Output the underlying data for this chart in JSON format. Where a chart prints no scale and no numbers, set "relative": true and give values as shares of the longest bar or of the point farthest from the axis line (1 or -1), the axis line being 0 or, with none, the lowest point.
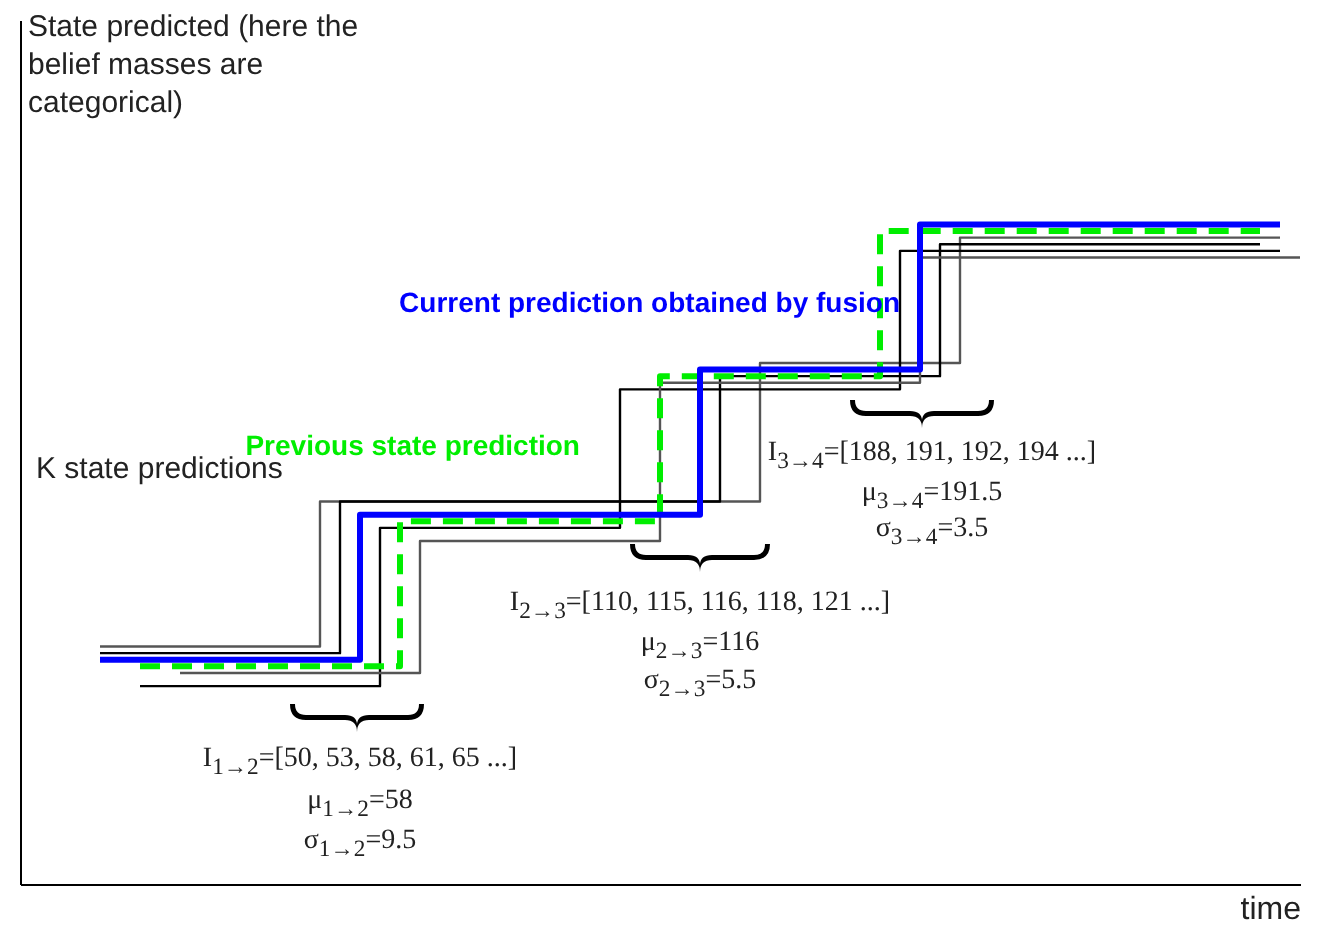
{
  "chart_data": {
    "type": "step",
    "relative": true,
    "xlabel": "time",
    "ylabel": "State predicted (here the belief masses are categorical)",
    "categories": [
      null,
      null,
      null,
      null,
      null,
      null,
      null,
      null,
      null,
      null,
      null,
      null,
      null,
      null,
      null,
      null,
      null,
      null,
      null,
      null,
      null,
      null,
      null,
      null,
      null,
      null,
      null,
      null,
      null,
      null,
      null,
      null,
      null,
      null,
      null,
      null,
      null,
      null,
      null,
      null,
      null,
      null,
      null,
      null,
      null,
      null,
      null,
      null,
      null,
      null,
      null,
      null,
      null,
      null,
      null,
      null,
      null,
      null,
      null,
      null,
      null,
      null
    ],
    "annotations": [
      "K state predictions",
      "I$_{1→2}$=[50, 53, 58, 61, 65 ...]",
      "μ$_{1→2}$=58",
      "σ$_{1→2}$=9.5",
      "I$_{2→3}$=[110, 115, 116, 118, 121 ...]",
      "μ$_{2→3}$=116",
      "σ$_{2→3}$=5.5",
      "I$_{3→4}$=[188, 191, 192, 194 ...]",
      "μ$_{3→4}$=191.5",
      "σ$_{3→4}$=3.5"
    ],
    "series": [
      {
        "color": "#555555",
        "values": [
          null,
          0.36,
          0.36,
          0.36,
          0.36,
          0.36,
          0.36,
          0.36,
          0.36,
          0.36,
          0.36,
          0.36,
          0.58,
          0.58,
          0.58,
          0.58,
          0.58,
          0.58,
          0.58,
          0.58,
          0.58,
          0.58,
          0.58,
          0.58,
          0.58,
          0.58,
          0.58,
          0.58,
          0.58,
          0.58,
          0.58,
          0.58,
          0.58,
          0.58,
          0.79,
          0.79,
          0.79,
          0.79,
          0.79,
          0.79,
          0.79,
          0.79,
          0.79,
          0.79,
          0.98,
          0.98,
          0.98,
          0.98,
          0.98,
          0.98,
          0.98,
          0.98,
          0.98,
          0.98,
          0.98,
          0.98,
          0.98,
          0.98,
          0.98,
          0.98,
          0.98,
          null
        ]
      },
      {
        "color": "#000000",
        "values": [
          null,
          0.35,
          0.35,
          0.35,
          0.35,
          0.35,
          0.35,
          0.35,
          0.35,
          0.35,
          0.35,
          0.35,
          0.35,
          0.58,
          0.58,
          0.58,
          0.58,
          0.58,
          0.58,
          0.58,
          0.58,
          0.58,
          0.58,
          0.58,
          0.58,
          0.58,
          0.58,
          0.58,
          0.58,
          0.58,
          0.58,
          0.58,
          0.77,
          0.77,
          0.77,
          0.77,
          0.77,
          0.77,
          0.77,
          0.77,
          0.77,
          0.77,
          0.77,
          0.97,
          0.97,
          0.97,
          0.97,
          0.97,
          0.97,
          0.97,
          0.97,
          0.97,
          0.97,
          0.97,
          0.97,
          0.97,
          0.97,
          0.97,
          0.97,
          0.97,
          null,
          null
        ]
      },
      {
        "color": "#000000",
        "values": [
          null,
          null,
          null,
          0.3,
          0.3,
          0.3,
          0.3,
          0.3,
          0.3,
          0.3,
          0.3,
          0.3,
          0.3,
          0.3,
          0.3,
          0.54,
          0.54,
          0.54,
          0.54,
          0.54,
          0.54,
          0.54,
          0.54,
          0.54,
          0.54,
          0.54,
          0.54,
          0.75,
          0.75,
          0.75,
          0.75,
          0.75,
          0.75,
          0.75,
          0.75,
          0.75,
          0.75,
          0.75,
          0.75,
          0.75,
          0.75,
          0.96,
          0.96,
          0.96,
          0.96,
          0.96,
          0.96,
          0.96,
          0.96,
          0.96,
          0.96,
          0.96,
          0.96,
          0.96,
          0.96,
          0.96,
          0.96,
          0.96,
          0.96,
          0.96,
          0.96,
          null
        ]
      },
      {
        "color": "#555555",
        "values": [
          null,
          null,
          null,
          null,
          null,
          0.32,
          0.32,
          0.32,
          0.32,
          0.32,
          0.32,
          0.32,
          0.32,
          0.32,
          0.32,
          0.32,
          0.32,
          0.52,
          0.52,
          0.52,
          0.52,
          0.52,
          0.52,
          0.52,
          0.52,
          0.52,
          0.52,
          0.52,
          0.52,
          0.76,
          0.76,
          0.76,
          0.76,
          0.76,
          0.76,
          0.76,
          0.76,
          0.76,
          0.76,
          0.76,
          0.76,
          0.76,
          0.95,
          0.95,
          0.95,
          0.95,
          0.95,
          0.95,
          0.95,
          0.95,
          0.95,
          0.95,
          0.95,
          0.95,
          0.95,
          0.95,
          0.95,
          0.95,
          0.95,
          0.95,
          0.95,
          0.95
        ]
      },
      {
        "name": "Previous state prediction",
        "color": "#00ee00",
        "line_style": "dashed",
        "values": [
          null,
          null,
          null,
          0.33,
          0.33,
          0.33,
          0.33,
          0.33,
          0.33,
          0.33,
          0.33,
          0.33,
          0.33,
          0.33,
          0.33,
          0.33,
          0.55,
          0.55,
          0.55,
          0.55,
          0.55,
          0.55,
          0.55,
          0.55,
          0.55,
          0.55,
          0.55,
          0.55,
          0.55,
          0.77,
          0.77,
          0.77,
          0.77,
          0.77,
          0.77,
          0.77,
          0.77,
          0.77,
          0.77,
          0.77,
          0.99,
          0.99,
          0.99,
          0.99,
          0.99,
          0.99,
          0.99,
          0.99,
          0.99,
          0.99,
          0.99,
          0.99,
          0.99,
          0.99,
          0.99,
          0.99,
          0.99,
          0.99,
          0.99,
          0.99,
          null,
          null
        ]
      },
      {
        "name": "Current prediction obtained by fusion",
        "color": "#0000ff",
        "values": [
          null,
          0.34,
          0.34,
          0.34,
          0.34,
          0.34,
          0.34,
          0.34,
          0.34,
          0.34,
          0.34,
          0.34,
          0.34,
          0.34,
          0.56,
          0.56,
          0.56,
          0.56,
          0.56,
          0.56,
          0.56,
          0.56,
          0.56,
          0.56,
          0.56,
          0.56,
          0.56,
          0.56,
          0.56,
          0.56,
          0.56,
          0.78,
          0.78,
          0.78,
          0.78,
          0.78,
          0.78,
          0.78,
          0.78,
          0.78,
          0.78,
          0.78,
          1,
          1,
          1,
          1,
          1,
          1,
          1,
          1,
          1,
          1,
          1,
          1,
          1,
          1,
          1,
          1,
          1,
          1,
          1,
          null
        ]
      }
    ]
  }
}
